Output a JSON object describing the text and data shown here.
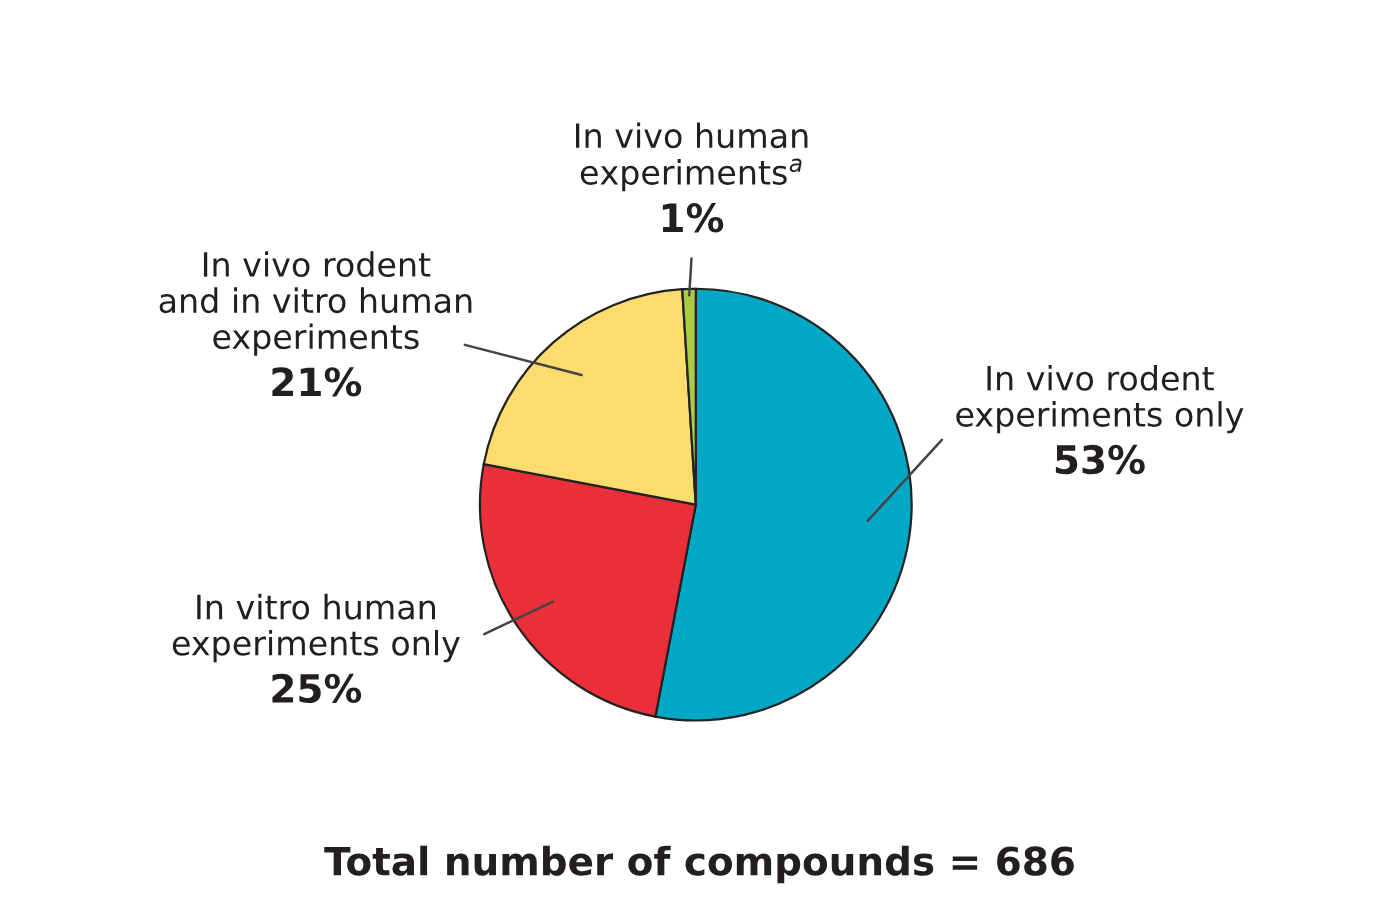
{
  "chart_data": {
    "type": "pie",
    "categories": [
      "In vivo rodent\nexperiments only",
      "In vitro human\nexperiments only",
      "In vivo rodent\nand in vitro human\nexperiments",
      "In vivo human\nexperiments$^{a}$"
    ],
    "values": [
      53,
      25,
      21,
      1
    ],
    "colors": [
      "#00a8c6",
      "#ea2f39",
      "#fddc6e",
      "#a8cd45"
    ],
    "value_labels": [
      "53%",
      "25%",
      "21%",
      "1%"
    ],
    "annotations": [
      "Total number of compounds = 686"
    ]
  }
}
